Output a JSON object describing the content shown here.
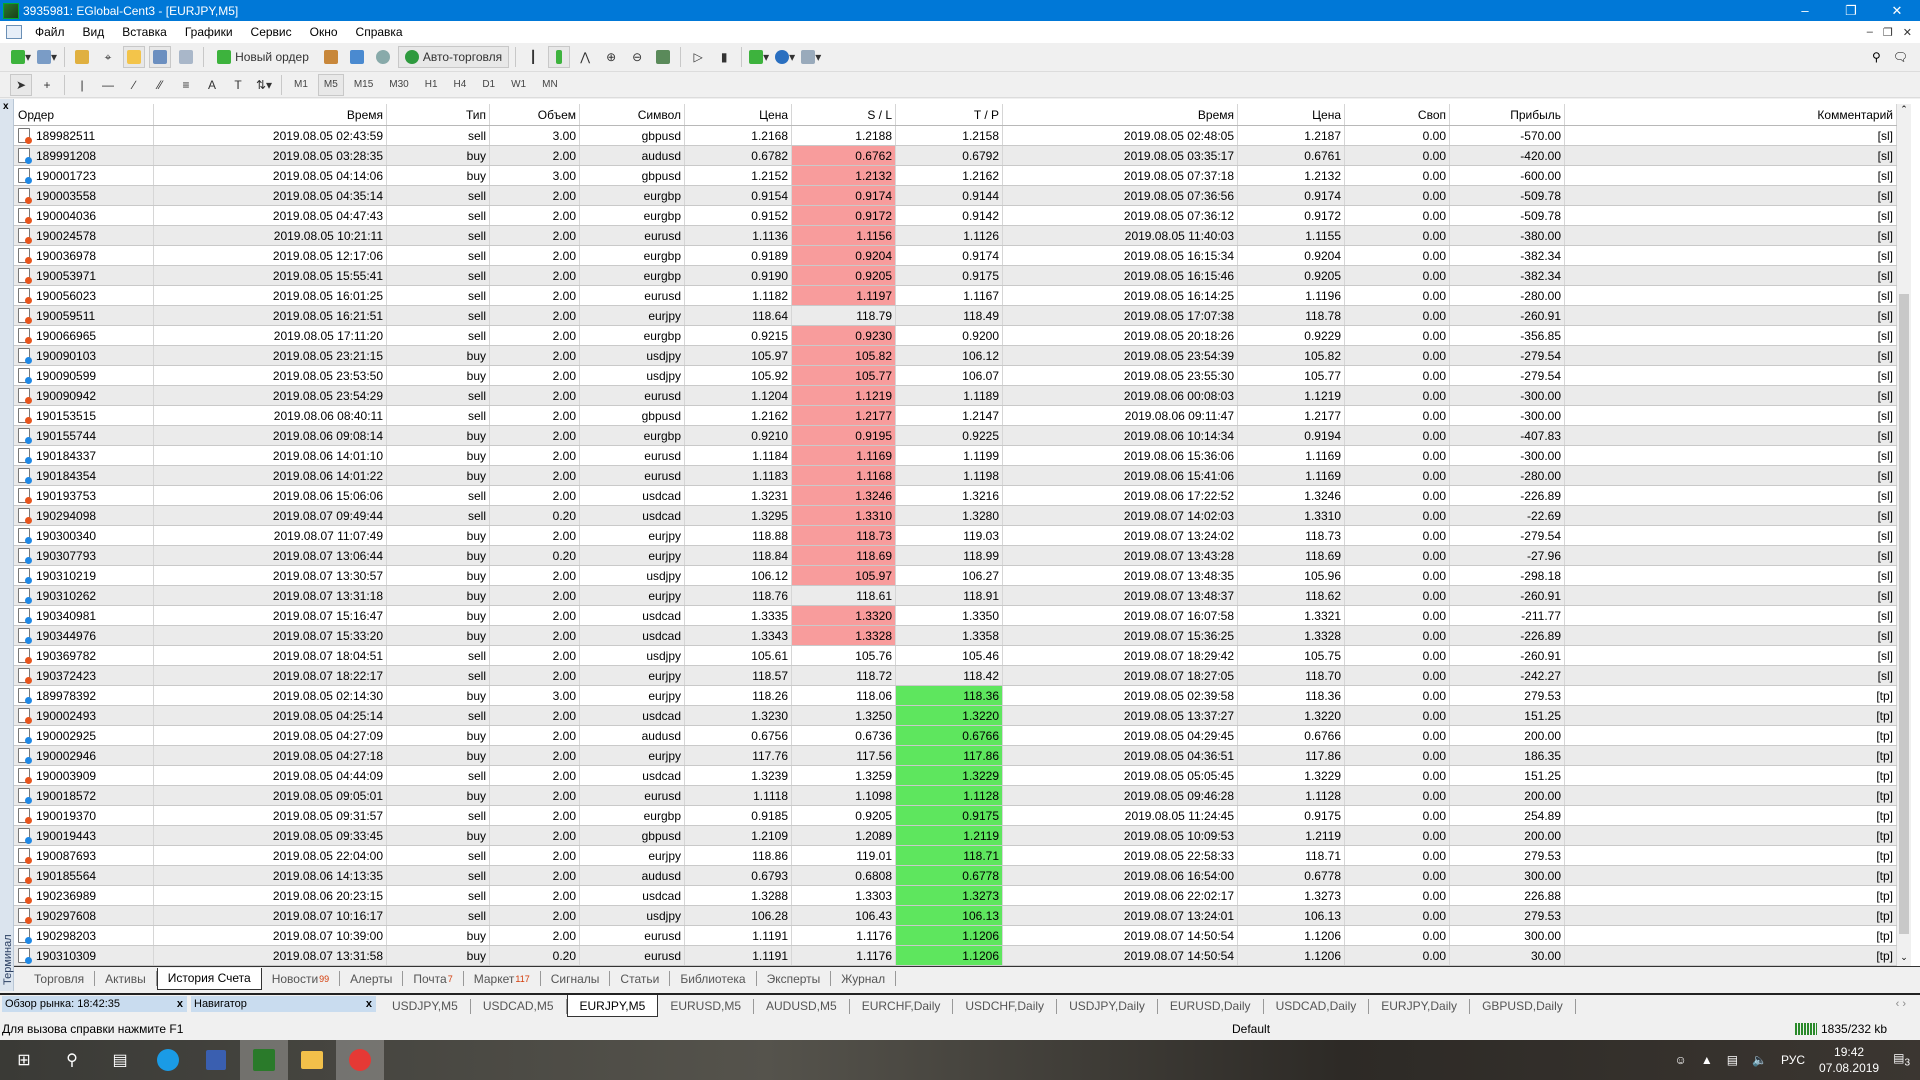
{
  "window": {
    "title": "3935981: EGlobal-Cent3 - [EURJPY,M5]"
  },
  "menu": [
    "Файл",
    "Вид",
    "Вставка",
    "Графики",
    "Сервис",
    "Окно",
    "Справка"
  ],
  "toolbar": {
    "new_order": "Новый ордер",
    "auto_trading": "Авто-торговля"
  },
  "timeframes": [
    "M1",
    "M5",
    "M15",
    "M30",
    "H1",
    "H4",
    "D1",
    "W1",
    "MN"
  ],
  "active_timeframe": "M5",
  "colors": {
    "sl_highlight": "#f89c9c",
    "tp_highlight": "#5ee65e",
    "buy_icon": "#1e88e5",
    "sell_icon": "#e8541c",
    "accent": "#0078d7"
  },
  "table": {
    "columns": [
      "Ордер",
      "Время",
      "Тип",
      "Объем",
      "Символ",
      "Цена",
      "S / L",
      "T / P",
      "Время",
      "Цена",
      "Своп",
      "Прибыль",
      "Комментарий"
    ],
    "rows": [
      [
        "189982511",
        "2019.08.05 02:43:59",
        "sell",
        "3.00",
        "gbpusd",
        "1.2168",
        "1.2188",
        "1.2158",
        "2019.08.05 02:48:05",
        "1.2187",
        "0.00",
        "-570.00",
        "[sl]",
        ""
      ],
      [
        "189991208",
        "2019.08.05 03:28:35",
        "buy",
        "2.00",
        "audusd",
        "0.6782",
        "0.6762",
        "0.6792",
        "2019.08.05 03:35:17",
        "0.6761",
        "0.00",
        "-420.00",
        "[sl]",
        "sl"
      ],
      [
        "190001723",
        "2019.08.05 04:14:06",
        "buy",
        "3.00",
        "gbpusd",
        "1.2152",
        "1.2132",
        "1.2162",
        "2019.08.05 07:37:18",
        "1.2132",
        "0.00",
        "-600.00",
        "[sl]",
        "sl"
      ],
      [
        "190003558",
        "2019.08.05 04:35:14",
        "sell",
        "2.00",
        "eurgbp",
        "0.9154",
        "0.9174",
        "0.9144",
        "2019.08.05 07:36:56",
        "0.9174",
        "0.00",
        "-509.78",
        "[sl]",
        "sl"
      ],
      [
        "190004036",
        "2019.08.05 04:47:43",
        "sell",
        "2.00",
        "eurgbp",
        "0.9152",
        "0.9172",
        "0.9142",
        "2019.08.05 07:36:12",
        "0.9172",
        "0.00",
        "-509.78",
        "[sl]",
        "sl"
      ],
      [
        "190024578",
        "2019.08.05 10:21:11",
        "sell",
        "2.00",
        "eurusd",
        "1.1136",
        "1.1156",
        "1.1126",
        "2019.08.05 11:40:03",
        "1.1155",
        "0.00",
        "-380.00",
        "[sl]",
        "sl"
      ],
      [
        "190036978",
        "2019.08.05 12:17:06",
        "sell",
        "2.00",
        "eurgbp",
        "0.9189",
        "0.9204",
        "0.9174",
        "2019.08.05 16:15:34",
        "0.9204",
        "0.00",
        "-382.34",
        "[sl]",
        "sl"
      ],
      [
        "190053971",
        "2019.08.05 15:55:41",
        "sell",
        "2.00",
        "eurgbp",
        "0.9190",
        "0.9205",
        "0.9175",
        "2019.08.05 16:15:46",
        "0.9205",
        "0.00",
        "-382.34",
        "[sl]",
        "sl"
      ],
      [
        "190056023",
        "2019.08.05 16:01:25",
        "sell",
        "2.00",
        "eurusd",
        "1.1182",
        "1.1197",
        "1.1167",
        "2019.08.05 16:14:25",
        "1.1196",
        "0.00",
        "-280.00",
        "[sl]",
        "sl"
      ],
      [
        "190059511",
        "2019.08.05 16:21:51",
        "sell",
        "2.00",
        "eurjpy",
        "118.64",
        "118.79",
        "118.49",
        "2019.08.05 17:07:38",
        "118.78",
        "0.00",
        "-260.91",
        "[sl]",
        ""
      ],
      [
        "190066965",
        "2019.08.05 17:11:20",
        "sell",
        "2.00",
        "eurgbp",
        "0.9215",
        "0.9230",
        "0.9200",
        "2019.08.05 20:18:26",
        "0.9229",
        "0.00",
        "-356.85",
        "[sl]",
        "sl"
      ],
      [
        "190090103",
        "2019.08.05 23:21:15",
        "buy",
        "2.00",
        "usdjpy",
        "105.97",
        "105.82",
        "106.12",
        "2019.08.05 23:54:39",
        "105.82",
        "0.00",
        "-279.54",
        "[sl]",
        "sl"
      ],
      [
        "190090599",
        "2019.08.05 23:53:50",
        "buy",
        "2.00",
        "usdjpy",
        "105.92",
        "105.77",
        "106.07",
        "2019.08.05 23:55:30",
        "105.77",
        "0.00",
        "-279.54",
        "[sl]",
        "sl"
      ],
      [
        "190090942",
        "2019.08.05 23:54:29",
        "sell",
        "2.00",
        "eurusd",
        "1.1204",
        "1.1219",
        "1.1189",
        "2019.08.06 00:08:03",
        "1.1219",
        "0.00",
        "-300.00",
        "[sl]",
        "sl"
      ],
      [
        "190153515",
        "2019.08.06 08:40:11",
        "sell",
        "2.00",
        "gbpusd",
        "1.2162",
        "1.2177",
        "1.2147",
        "2019.08.06 09:11:47",
        "1.2177",
        "0.00",
        "-300.00",
        "[sl]",
        "sl"
      ],
      [
        "190155744",
        "2019.08.06 09:08:14",
        "buy",
        "2.00",
        "eurgbp",
        "0.9210",
        "0.9195",
        "0.9225",
        "2019.08.06 10:14:34",
        "0.9194",
        "0.00",
        "-407.83",
        "[sl]",
        "sl"
      ],
      [
        "190184337",
        "2019.08.06 14:01:10",
        "buy",
        "2.00",
        "eurusd",
        "1.1184",
        "1.1169",
        "1.1199",
        "2019.08.06 15:36:06",
        "1.1169",
        "0.00",
        "-300.00",
        "[sl]",
        "sl"
      ],
      [
        "190184354",
        "2019.08.06 14:01:22",
        "buy",
        "2.00",
        "eurusd",
        "1.1183",
        "1.1168",
        "1.1198",
        "2019.08.06 15:41:06",
        "1.1169",
        "0.00",
        "-280.00",
        "[sl]",
        "sl"
      ],
      [
        "190193753",
        "2019.08.06 15:06:06",
        "sell",
        "2.00",
        "usdcad",
        "1.3231",
        "1.3246",
        "1.3216",
        "2019.08.06 17:22:52",
        "1.3246",
        "0.00",
        "-226.89",
        "[sl]",
        "sl"
      ],
      [
        "190294098",
        "2019.08.07 09:49:44",
        "sell",
        "0.20",
        "usdcad",
        "1.3295",
        "1.3310",
        "1.3280",
        "2019.08.07 14:02:03",
        "1.3310",
        "0.00",
        "-22.69",
        "[sl]",
        "sl"
      ],
      [
        "190300340",
        "2019.08.07 11:07:49",
        "buy",
        "2.00",
        "eurjpy",
        "118.88",
        "118.73",
        "119.03",
        "2019.08.07 13:24:02",
        "118.73",
        "0.00",
        "-279.54",
        "[sl]",
        "sl"
      ],
      [
        "190307793",
        "2019.08.07 13:06:44",
        "buy",
        "0.20",
        "eurjpy",
        "118.84",
        "118.69",
        "118.99",
        "2019.08.07 13:43:28",
        "118.69",
        "0.00",
        "-27.96",
        "[sl]",
        "sl"
      ],
      [
        "190310219",
        "2019.08.07 13:30:57",
        "buy",
        "2.00",
        "usdjpy",
        "106.12",
        "105.97",
        "106.27",
        "2019.08.07 13:48:35",
        "105.96",
        "0.00",
        "-298.18",
        "[sl]",
        "sl"
      ],
      [
        "190310262",
        "2019.08.07 13:31:18",
        "buy",
        "2.00",
        "eurjpy",
        "118.76",
        "118.61",
        "118.91",
        "2019.08.07 13:48:37",
        "118.62",
        "0.00",
        "-260.91",
        "[sl]",
        ""
      ],
      [
        "190340981",
        "2019.08.07 15:16:47",
        "buy",
        "2.00",
        "usdcad",
        "1.3335",
        "1.3320",
        "1.3350",
        "2019.08.07 16:07:58",
        "1.3321",
        "0.00",
        "-211.77",
        "[sl]",
        "sl"
      ],
      [
        "190344976",
        "2019.08.07 15:33:20",
        "buy",
        "2.00",
        "usdcad",
        "1.3343",
        "1.3328",
        "1.3358",
        "2019.08.07 15:36:25",
        "1.3328",
        "0.00",
        "-226.89",
        "[sl]",
        "sl"
      ],
      [
        "190369782",
        "2019.08.07 18:04:51",
        "sell",
        "2.00",
        "usdjpy",
        "105.61",
        "105.76",
        "105.46",
        "2019.08.07 18:29:42",
        "105.75",
        "0.00",
        "-260.91",
        "[sl]",
        ""
      ],
      [
        "190372423",
        "2019.08.07 18:22:17",
        "sell",
        "2.00",
        "eurjpy",
        "118.57",
        "118.72",
        "118.42",
        "2019.08.07 18:27:05",
        "118.70",
        "0.00",
        "-242.27",
        "[sl]",
        ""
      ],
      [
        "189978392",
        "2019.08.05 02:14:30",
        "buy",
        "3.00",
        "eurjpy",
        "118.26",
        "118.06",
        "118.36",
        "2019.08.05 02:39:58",
        "118.36",
        "0.00",
        "279.53",
        "[tp]",
        "tp"
      ],
      [
        "190002493",
        "2019.08.05 04:25:14",
        "sell",
        "2.00",
        "usdcad",
        "1.3230",
        "1.3250",
        "1.3220",
        "2019.08.05 13:37:27",
        "1.3220",
        "0.00",
        "151.25",
        "[tp]",
        "tp"
      ],
      [
        "190002925",
        "2019.08.05 04:27:09",
        "buy",
        "2.00",
        "audusd",
        "0.6756",
        "0.6736",
        "0.6766",
        "2019.08.05 04:29:45",
        "0.6766",
        "0.00",
        "200.00",
        "[tp]",
        "tp"
      ],
      [
        "190002946",
        "2019.08.05 04:27:18",
        "buy",
        "2.00",
        "eurjpy",
        "117.76",
        "117.56",
        "117.86",
        "2019.08.05 04:36:51",
        "117.86",
        "0.00",
        "186.35",
        "[tp]",
        "tp"
      ],
      [
        "190003909",
        "2019.08.05 04:44:09",
        "sell",
        "2.00",
        "usdcad",
        "1.3239",
        "1.3259",
        "1.3229",
        "2019.08.05 05:05:45",
        "1.3229",
        "0.00",
        "151.25",
        "[tp]",
        "tp"
      ],
      [
        "190018572",
        "2019.08.05 09:05:01",
        "buy",
        "2.00",
        "eurusd",
        "1.1118",
        "1.1098",
        "1.1128",
        "2019.08.05 09:46:28",
        "1.1128",
        "0.00",
        "200.00",
        "[tp]",
        "tp"
      ],
      [
        "190019370",
        "2019.08.05 09:31:57",
        "sell",
        "2.00",
        "eurgbp",
        "0.9185",
        "0.9205",
        "0.9175",
        "2019.08.05 11:24:45",
        "0.9175",
        "0.00",
        "254.89",
        "[tp]",
        "tp"
      ],
      [
        "190019443",
        "2019.08.05 09:33:45",
        "buy",
        "2.00",
        "gbpusd",
        "1.2109",
        "1.2089",
        "1.2119",
        "2019.08.05 10:09:53",
        "1.2119",
        "0.00",
        "200.00",
        "[tp]",
        "tp"
      ],
      [
        "190087693",
        "2019.08.05 22:04:00",
        "sell",
        "2.00",
        "eurjpy",
        "118.86",
        "119.01",
        "118.71",
        "2019.08.05 22:58:33",
        "118.71",
        "0.00",
        "279.53",
        "[tp]",
        "tp"
      ],
      [
        "190185564",
        "2019.08.06 14:13:35",
        "sell",
        "2.00",
        "audusd",
        "0.6793",
        "0.6808",
        "0.6778",
        "2019.08.06 16:54:00",
        "0.6778",
        "0.00",
        "300.00",
        "[tp]",
        "tp"
      ],
      [
        "190236989",
        "2019.08.06 20:23:15",
        "sell",
        "2.00",
        "usdcad",
        "1.3288",
        "1.3303",
        "1.3273",
        "2019.08.06 22:02:17",
        "1.3273",
        "0.00",
        "226.88",
        "[tp]",
        "tp"
      ],
      [
        "190297608",
        "2019.08.07 10:16:17",
        "sell",
        "2.00",
        "usdjpy",
        "106.28",
        "106.43",
        "106.13",
        "2019.08.07 13:24:01",
        "106.13",
        "0.00",
        "279.53",
        "[tp]",
        "tp"
      ],
      [
        "190298203",
        "2019.08.07 10:39:00",
        "buy",
        "2.00",
        "eurusd",
        "1.1191",
        "1.1176",
        "1.1206",
        "2019.08.07 14:50:54",
        "1.1206",
        "0.00",
        "300.00",
        "[tp]",
        "tp"
      ],
      [
        "190310309",
        "2019.08.07 13:31:58",
        "buy",
        "0.20",
        "eurusd",
        "1.1191",
        "1.1176",
        "1.1206",
        "2019.08.07 14:50:54",
        "1.1206",
        "0.00",
        "30.00",
        "[tp]",
        "tp"
      ]
    ]
  },
  "terminal": {
    "side_label": "Терминал",
    "tabs": [
      {
        "label": "Торговля"
      },
      {
        "label": "Активы"
      },
      {
        "label": "История Счета",
        "active": true
      },
      {
        "label": "Новости",
        "badge": "99"
      },
      {
        "label": "Алерты"
      },
      {
        "label": "Почта",
        "badge": "7"
      },
      {
        "label": "Маркет",
        "badge": "117"
      },
      {
        "label": "Сигналы"
      },
      {
        "label": "Статьи"
      },
      {
        "label": "Библиотека"
      },
      {
        "label": "Эксперты"
      },
      {
        "label": "Журнал"
      }
    ]
  },
  "panels": {
    "market_watch": "Обзор рынка: 18:42:35",
    "navigator": "Навигатор"
  },
  "chart_tabs": [
    "USDJPY,M5",
    "USDCAD,M5",
    "EURJPY,M5",
    "EURUSD,M5",
    "AUDUSD,M5",
    "EURCHF,Daily",
    "USDCHF,Daily",
    "USDJPY,Daily",
    "EURUSD,Daily",
    "USDCAD,Daily",
    "EURJPY,Daily",
    "GBPUSD,Daily"
  ],
  "active_chart_tab": "EURJPY,M5",
  "status": {
    "help": "Для вызова справки нажмите F1",
    "profile": "Default",
    "traffic": "1835/232 kb"
  },
  "taskbar": {
    "lang": "РУС",
    "time": "19:42",
    "date": "07.08.2019",
    "notifications": "3"
  }
}
